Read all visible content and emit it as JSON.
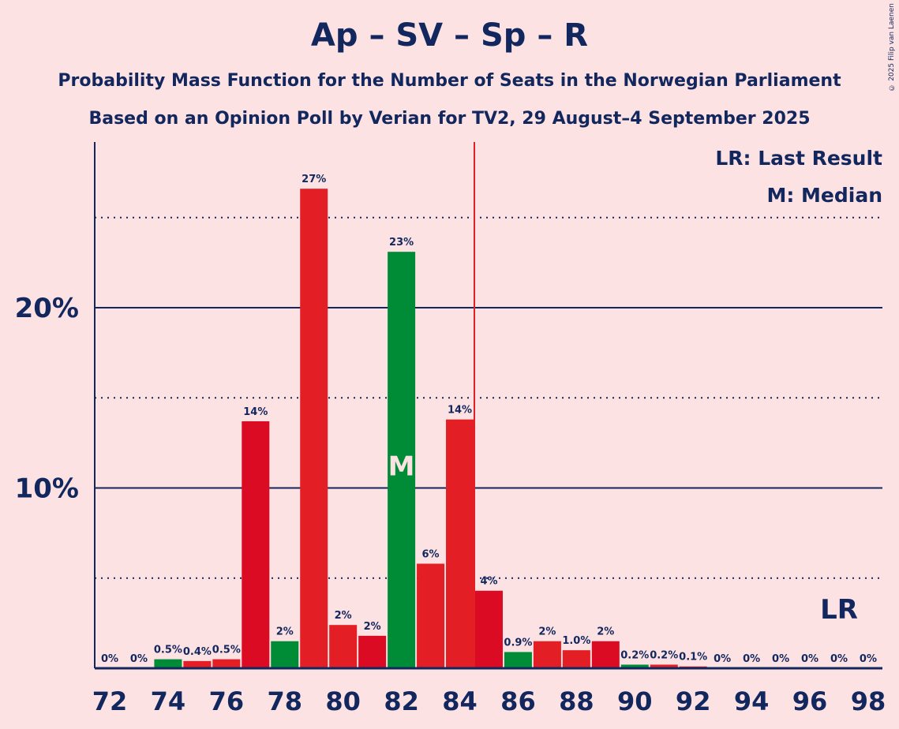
{
  "chart_data": {
    "type": "bar",
    "title": "Ap – SV – Sp – R",
    "subtitle1": "Probability Mass Function for the Number of Seats in the Norwegian Parliament",
    "subtitle2": "Based on an Opinion Poll by Verian for TV2, 29 August–4 September 2025",
    "copyright": "© 2025 Filip van Laenen",
    "x": [
      72,
      73,
      74,
      75,
      76,
      77,
      78,
      79,
      80,
      81,
      82,
      83,
      84,
      85,
      86,
      87,
      88,
      89,
      90,
      91,
      92,
      93,
      94,
      95,
      96,
      97,
      98
    ],
    "values": [
      0,
      0,
      0.5,
      0.4,
      0.5,
      13.7,
      1.5,
      26.6,
      2.4,
      1.8,
      23.1,
      5.8,
      13.8,
      4.3,
      0.9,
      1.5,
      1.0,
      1.5,
      0.2,
      0.2,
      0.1,
      0,
      0,
      0,
      0,
      0,
      0
    ],
    "labels": [
      "0%",
      "0%",
      "0.5%",
      "0.4%",
      "0.5%",
      "14%",
      "2%",
      "27%",
      "2%",
      "2%",
      "23%",
      "6%",
      "14%",
      "4%",
      "0.9%",
      "2%",
      "1.0%",
      "2%",
      "0.2%",
      "0.2%",
      "0.1%",
      "0%",
      "0%",
      "0%",
      "0%",
      "0%",
      "0%"
    ],
    "xticks": [
      "72",
      "74",
      "76",
      "78",
      "80",
      "82",
      "84",
      "86",
      "88",
      "90",
      "92",
      "94",
      "96",
      "98"
    ],
    "yticks": [
      "10%",
      "20%"
    ],
    "ylim": [
      0,
      29
    ],
    "median": 82,
    "median_label": "M",
    "last_result": 84.5,
    "last_result_label": "LR",
    "legend": [
      "LR: Last Result",
      "M: Median"
    ],
    "colors": {
      "red": "#e31e24",
      "dark_red": "#da0b23",
      "green": "#008c37",
      "navy": "#12275e",
      "lr_line": "#e31e24"
    }
  }
}
